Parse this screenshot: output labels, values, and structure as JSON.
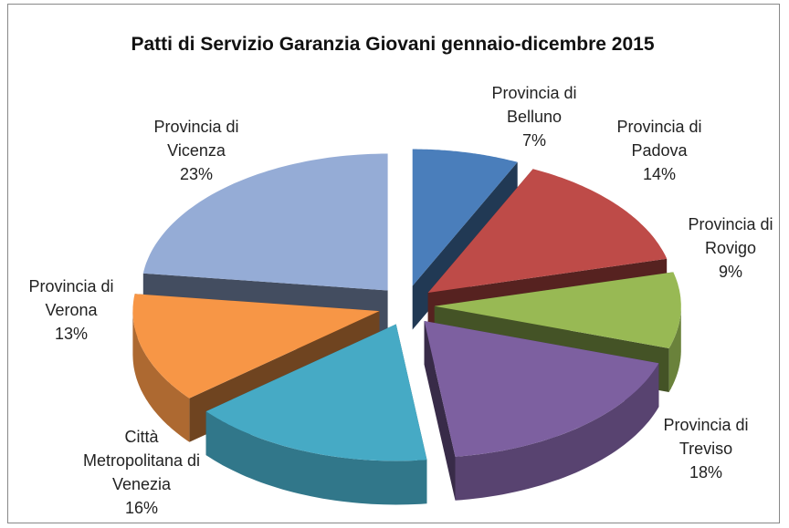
{
  "chart_data": {
    "type": "pie3d",
    "title": "Patti di Servizio Garanzia Giovani gennaio-dicembre 2015",
    "categories": [
      "Provincia di Belluno",
      "Provincia di Padova",
      "Provincia di Rovigo",
      "Provincia di Treviso",
      "Città Metropolitana di Venezia",
      "Provincia di Verona",
      "Provincia di Vicenza"
    ],
    "values": [
      7,
      14,
      9,
      18,
      16,
      13,
      23
    ],
    "value_labels": [
      "7%",
      "14%",
      "9%",
      "18%",
      "16%",
      "13%",
      "23%"
    ],
    "colors": [
      "#4a7ebb",
      "#be4b48",
      "#98b954",
      "#7d60a0",
      "#46aac5",
      "#f79646",
      "#95acd6"
    ]
  }
}
